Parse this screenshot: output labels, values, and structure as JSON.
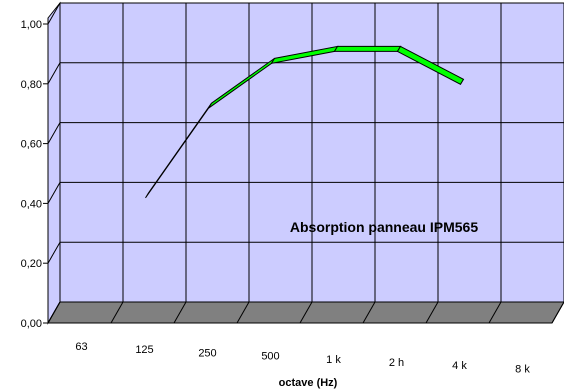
{
  "chart_data": {
    "type": "line",
    "title": "",
    "xlabel": "octave (Hz)",
    "ylabel": "",
    "categories": [
      "63",
      "125",
      "250",
      "500",
      "1 k",
      "2 h",
      "4 k",
      "8 k"
    ],
    "y_tick_labels": [
      "0,00",
      "0,20",
      "0,40",
      "0,60",
      "0,80",
      "1,00"
    ],
    "ylim": [
      0,
      1
    ],
    "grid": true,
    "style": "3d-line",
    "colors": {
      "wall": "#ccccff",
      "floor": "#808080",
      "line": "#00ff00",
      "grid": "#000000"
    },
    "series": [
      {
        "name": "",
        "values": [
          null,
          0.4,
          0.7,
          0.85,
          0.89,
          0.89,
          0.78,
          null
        ]
      }
    ],
    "annotation": "Absorption panneau IPM565"
  }
}
